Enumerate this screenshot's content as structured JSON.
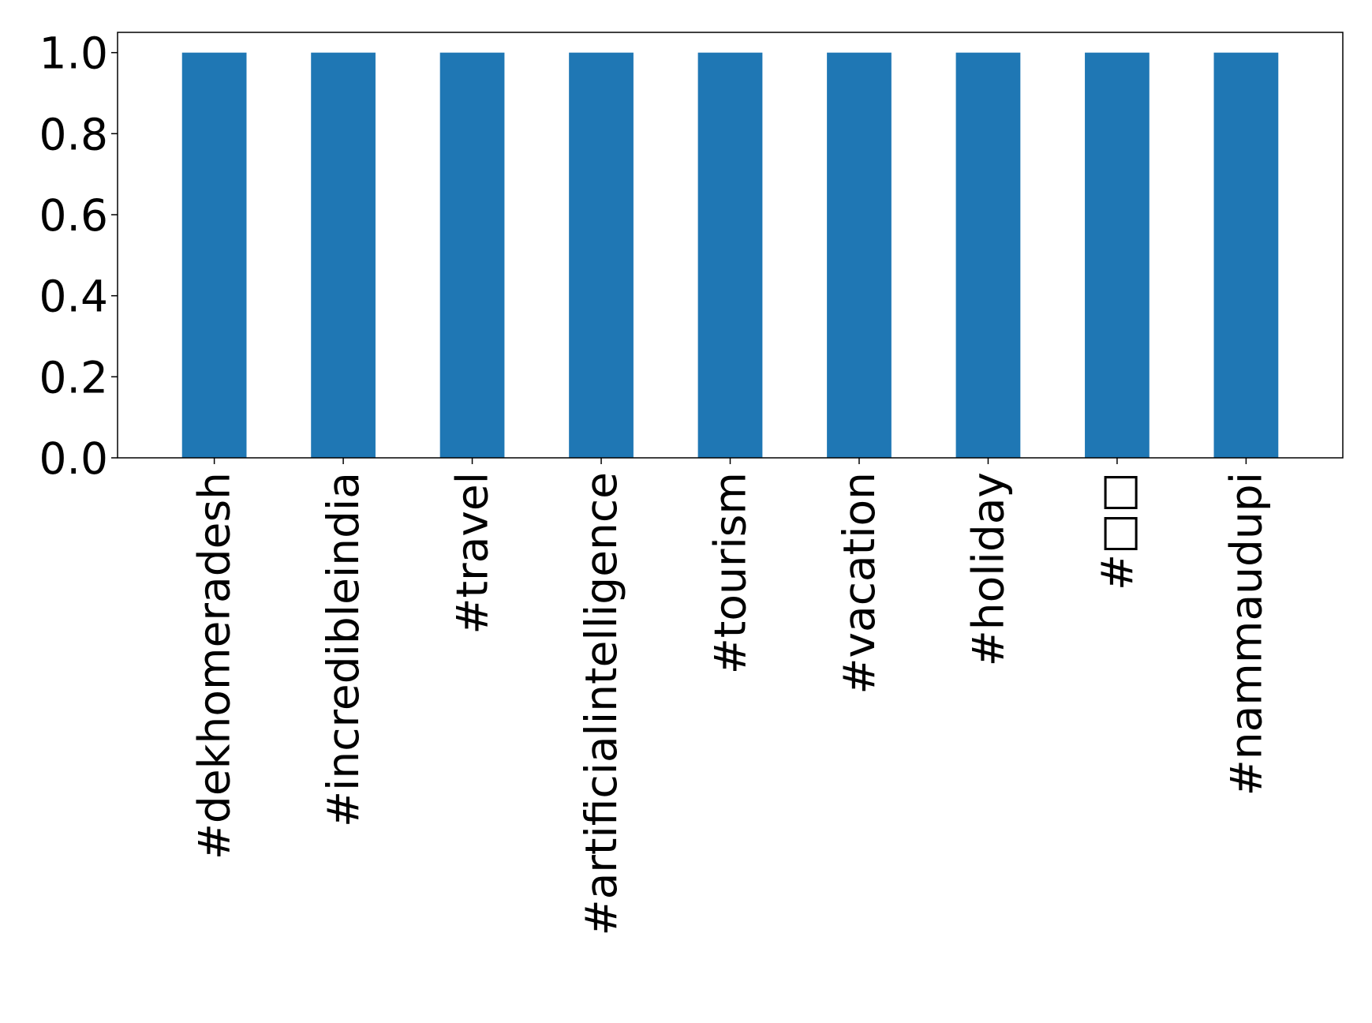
{
  "chart_data": {
    "type": "bar",
    "categories": [
      "#dekhomeradesh",
      "#incredibleindia",
      "#travel",
      "#artificialintelligence",
      "#tourism",
      "#vacation",
      "#holiday",
      "#□□",
      "#nammaudupi"
    ],
    "values": [
      1,
      1,
      1,
      1,
      1,
      1,
      1,
      1,
      1
    ],
    "ylim": [
      0,
      1.05
    ],
    "yticks": [
      "0.0",
      "0.2",
      "0.4",
      "0.6",
      "0.8",
      "1.0"
    ],
    "title": "",
    "xlabel": "",
    "ylabel": "",
    "grid": false,
    "legend": false,
    "bar_color": "#1f77b4"
  }
}
